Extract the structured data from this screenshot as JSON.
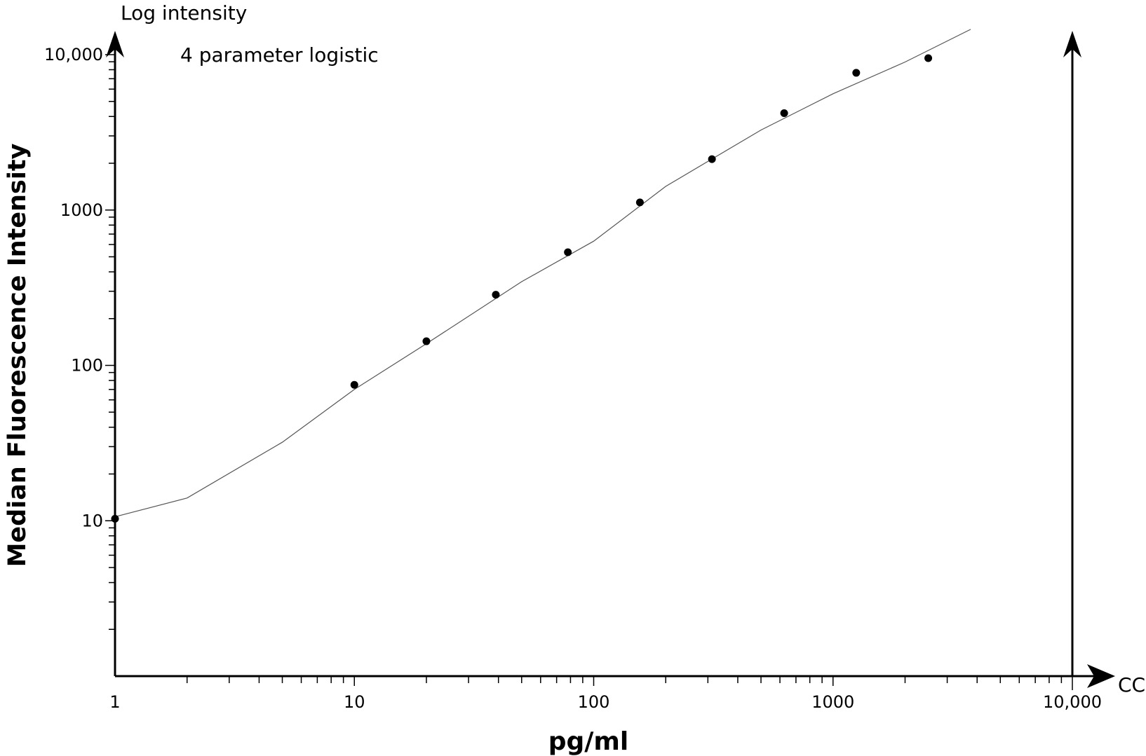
{
  "chart_data": {
    "type": "scatter",
    "title": "4 parameter logistic",
    "xlabel": "pg/ml",
    "ylabel": "Median Fluorescence Intensity",
    "y_axis_caption": "Log intensity",
    "x_axis_end_label": "CC",
    "xscale": "log",
    "yscale": "log",
    "xlim": [
      1,
      10000
    ],
    "ylim": [
      1,
      10000
    ],
    "grid": false,
    "x_tick_labels": [
      "1",
      "10",
      "100",
      "1000",
      "10,000"
    ],
    "x_tick_values": [
      1,
      10,
      100,
      1000,
      10000
    ],
    "y_tick_labels": [
      "10",
      "100",
      "1000",
      "10,000"
    ],
    "y_tick_values": [
      10,
      100,
      1000,
      10000
    ],
    "points": {
      "x": [
        1,
        10,
        20,
        39,
        78,
        156,
        312,
        625,
        1250,
        2500
      ],
      "y": [
        10.3,
        75,
        143,
        285,
        535,
        1120,
        2125,
        4200,
        7640,
        9490
      ]
    },
    "fit_curve": {
      "x": [
        1,
        2,
        5,
        10,
        20,
        50,
        100,
        200,
        500,
        1000,
        2000,
        3758
      ],
      "y": [
        10.6,
        14,
        32,
        70,
        138,
        346,
        630,
        1420,
        3270,
        5600,
        8970,
        14550
      ]
    },
    "colors": {
      "points": "#000000",
      "curve": "#555555",
      "axes": "#000000"
    }
  }
}
